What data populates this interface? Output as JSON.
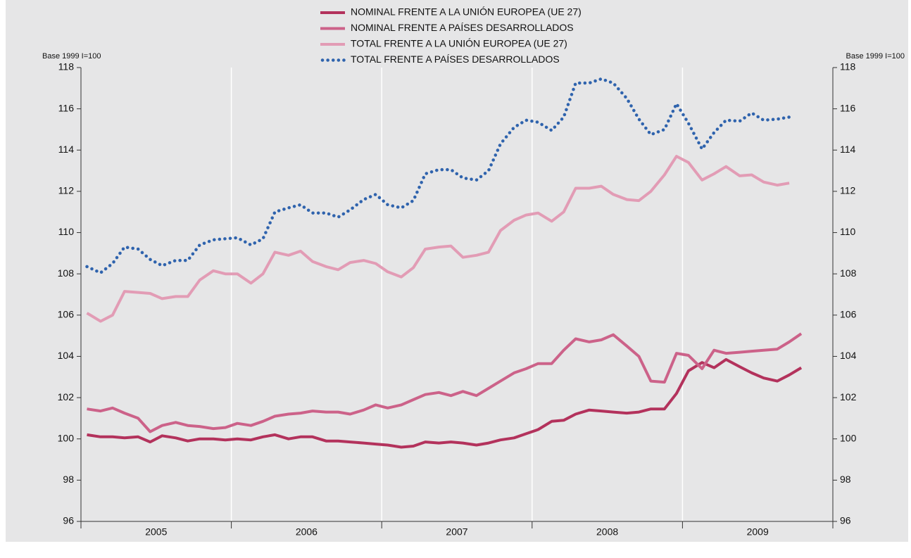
{
  "chart_data": {
    "type": "line",
    "y_label": "Base 1999 I=100",
    "y2_label": "Base 1999 I=100",
    "x": [
      2005.04,
      2005.13,
      2005.21,
      2005.29,
      2005.38,
      2005.46,
      2005.54,
      2005.63,
      2005.71,
      2005.79,
      2005.88,
      2005.96,
      2006.04,
      2006.13,
      2006.21,
      2006.29,
      2006.38,
      2006.46,
      2006.54,
      2006.63,
      2006.71,
      2006.79,
      2006.88,
      2006.96,
      2007.04,
      2007.13,
      2007.21,
      2007.29,
      2007.38,
      2007.46,
      2007.54,
      2007.63,
      2007.71,
      2007.79,
      2007.88,
      2007.96,
      2008.04,
      2008.13,
      2008.21,
      2008.29,
      2008.38,
      2008.46,
      2008.54,
      2008.63,
      2008.71,
      2008.79,
      2008.88,
      2008.96,
      2009.04,
      2009.13,
      2009.21,
      2009.29,
      2009.38,
      2009.46,
      2009.54,
      2009.63,
      2009.71,
      2009.79
    ],
    "xlim": [
      2005,
      2010
    ],
    "xticks": [
      {
        "value": 2005.5,
        "label": "2005"
      },
      {
        "value": 2006.5,
        "label": "2006"
      },
      {
        "value": 2007.5,
        "label": "2007"
      },
      {
        "value": 2008.5,
        "label": "2008"
      },
      {
        "value": 2009.5,
        "label": "2009"
      }
    ],
    "xgrid": [
      2006,
      2007,
      2008,
      2009
    ],
    "ylim": [
      96,
      118
    ],
    "yticks": [
      96,
      98,
      100,
      102,
      104,
      106,
      108,
      110,
      112,
      114,
      116,
      118
    ],
    "y2lim": [
      96,
      118
    ],
    "y2ticks": [
      96,
      98,
      100,
      102,
      104,
      106,
      108,
      110,
      112,
      114,
      116,
      118
    ],
    "series": [
      {
        "name": "NOMINAL FRENTE A LA UNIÓN EUROPEA (UE 27)",
        "color": "#b3325c",
        "style": "solid",
        "values": [
          100.2,
          100.1,
          100.1,
          100.05,
          100.1,
          99.85,
          100.15,
          100.05,
          99.9,
          100.0,
          100.0,
          99.95,
          100.0,
          99.95,
          100.1,
          100.2,
          100.0,
          100.1,
          100.1,
          99.9,
          99.9,
          99.85,
          99.8,
          99.75,
          99.7,
          99.6,
          99.65,
          99.85,
          99.8,
          99.85,
          99.8,
          99.7,
          99.8,
          99.95,
          100.05,
          100.25,
          100.45,
          100.85,
          100.9,
          101.2,
          101.4,
          101.35,
          101.3,
          101.25,
          101.3,
          101.45,
          101.45,
          102.2,
          103.3,
          103.7,
          103.45,
          103.85,
          103.5,
          103.2,
          102.95,
          102.8,
          103.1,
          103.45
        ]
      },
      {
        "name": "NOMINAL FRENTE A PAÍSES DESARROLLADOS",
        "color": "#cc6289",
        "style": "solid",
        "values": [
          101.45,
          101.35,
          101.5,
          101.25,
          101.0,
          100.35,
          100.65,
          100.8,
          100.65,
          100.6,
          100.5,
          100.55,
          100.75,
          100.65,
          100.85,
          101.1,
          101.2,
          101.25,
          101.35,
          101.3,
          101.3,
          101.2,
          101.4,
          101.65,
          101.5,
          101.65,
          101.9,
          102.15,
          102.25,
          102.1,
          102.3,
          102.1,
          102.45,
          102.8,
          103.2,
          103.4,
          103.65,
          103.65,
          104.3,
          104.85,
          104.7,
          104.8,
          105.05,
          104.5,
          104.0,
          102.8,
          102.75,
          104.15,
          104.05,
          103.4,
          104.3,
          104.15,
          104.2,
          104.25,
          104.3,
          104.35,
          104.7,
          105.1
        ]
      },
      {
        "name": "TOTAL FRENTE A LA UNIÓN EUROPEA (UE 27)",
        "color": "#e29cb5",
        "style": "solid",
        "values": [
          106.1,
          105.7,
          106.0,
          107.15,
          107.1,
          107.05,
          106.8,
          106.9,
          106.9,
          107.7,
          108.15,
          108.0,
          108.0,
          107.55,
          108.0,
          109.05,
          108.9,
          109.1,
          108.6,
          108.35,
          108.2,
          108.55,
          108.65,
          108.5,
          108.1,
          107.85,
          108.3,
          109.2,
          109.3,
          109.35,
          108.8,
          108.9,
          109.05,
          110.1,
          110.6,
          110.85,
          110.95,
          110.55,
          111.0,
          112.15,
          112.15,
          112.25,
          111.85,
          111.6,
          111.55,
          112.0,
          112.8,
          113.7,
          113.4,
          112.55,
          112.85,
          113.2,
          112.75,
          112.8,
          112.45,
          112.3,
          112.4,
          null
        ]
      },
      {
        "name": "TOTAL FRENTE A PAÍSES DESARROLLADOS",
        "color": "#2f63ad",
        "style": "dotted",
        "values": [
          108.35,
          108.05,
          108.5,
          109.3,
          109.2,
          108.7,
          108.4,
          108.65,
          108.65,
          109.4,
          109.65,
          109.7,
          109.75,
          109.4,
          109.7,
          111.0,
          111.2,
          111.35,
          110.95,
          110.95,
          110.75,
          111.1,
          111.6,
          111.85,
          111.35,
          111.2,
          111.55,
          112.85,
          113.05,
          113.05,
          112.65,
          112.55,
          113.0,
          114.3,
          115.1,
          115.45,
          115.35,
          114.95,
          115.6,
          117.25,
          117.25,
          117.45,
          117.25,
          116.5,
          115.5,
          114.75,
          115.0,
          116.25,
          115.3,
          114.05,
          114.85,
          115.45,
          115.4,
          115.8,
          115.45,
          115.5,
          115.6,
          null
        ]
      }
    ]
  }
}
